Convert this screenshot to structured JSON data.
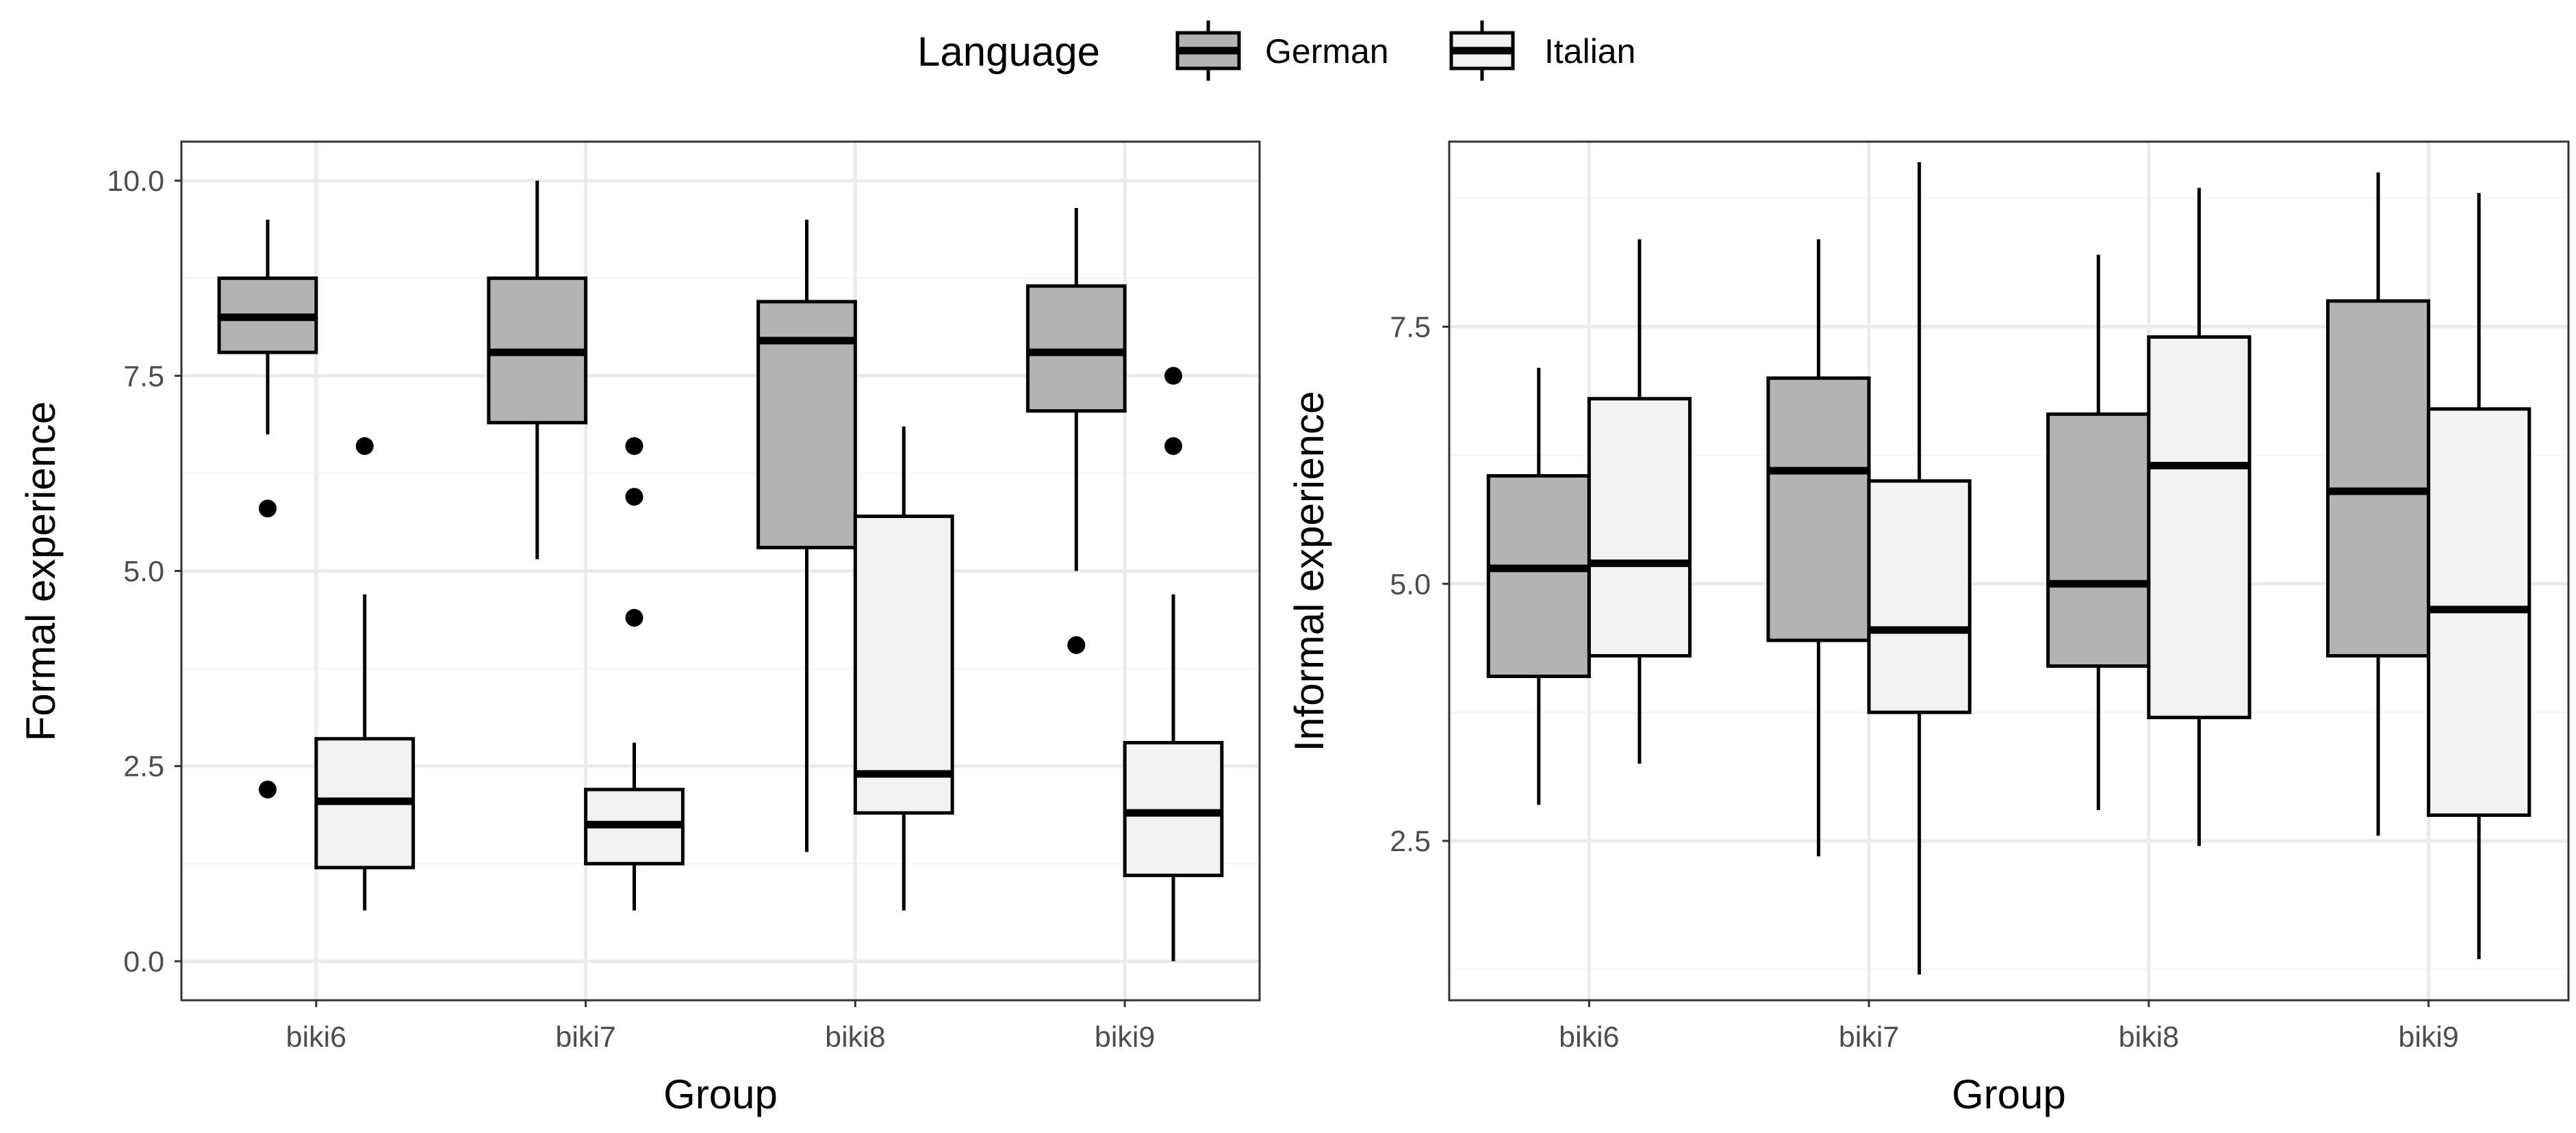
{
  "legend": {
    "title": "Language",
    "entries": [
      {
        "label": "German",
        "fill": "#b3b3b3"
      },
      {
        "label": "Italian",
        "fill": "#f2f2f2"
      }
    ]
  },
  "chart_data": [
    {
      "type": "boxplot",
      "xlabel": "Group",
      "ylabel": "Formal experience",
      "categories": [
        "biki6",
        "biki7",
        "biki8",
        "biki9"
      ],
      "ylim": [
        -0.5,
        10.5
      ],
      "yticks": [
        0.0,
        2.5,
        5.0,
        7.5,
        10.0
      ],
      "ytick_labels": [
        "0.0",
        "2.5",
        "5.0",
        "7.5",
        "10.0"
      ],
      "series": [
        {
          "name": "German",
          "boxes": [
            {
              "lower": 6.75,
              "q1": 7.8,
              "median": 8.25,
              "q3": 8.75,
              "upper": 9.5,
              "outliers": [
                5.8,
                2.2
              ]
            },
            {
              "lower": 5.15,
              "q1": 6.9,
              "median": 7.8,
              "q3": 8.75,
              "upper": 10.0,
              "outliers": []
            },
            {
              "lower": 1.4,
              "q1": 5.3,
              "median": 7.95,
              "q3": 8.45,
              "upper": 9.5,
              "outliers": []
            },
            {
              "lower": 5.0,
              "q1": 7.05,
              "median": 7.8,
              "q3": 8.65,
              "upper": 9.65,
              "outliers": [
                4.05
              ]
            }
          ]
        },
        {
          "name": "Italian",
          "boxes": [
            {
              "lower": 0.65,
              "q1": 1.2,
              "median": 2.05,
              "q3": 2.85,
              "upper": 4.7,
              "outliers": [
                6.6
              ]
            },
            {
              "lower": 0.65,
              "q1": 1.25,
              "median": 1.75,
              "q3": 2.2,
              "upper": 2.8,
              "outliers": [
                6.6,
                5.95,
                4.4
              ]
            },
            {
              "lower": 0.65,
              "q1": 1.9,
              "median": 2.4,
              "q3": 5.7,
              "upper": 6.85,
              "outliers": []
            },
            {
              "lower": 0.0,
              "q1": 1.1,
              "median": 1.9,
              "q3": 2.8,
              "upper": 4.7,
              "outliers": [
                7.5,
                6.6
              ]
            }
          ]
        }
      ]
    },
    {
      "type": "boxplot",
      "xlabel": "Group",
      "ylabel": "Informal experience",
      "categories": [
        "biki6",
        "biki7",
        "biki8",
        "biki9"
      ],
      "ylim": [
        0.95,
        9.3
      ],
      "yticks": [
        2.5,
        5.0,
        7.5
      ],
      "ytick_labels": [
        "2.5",
        "5.0",
        "7.5"
      ],
      "series": [
        {
          "name": "German",
          "boxes": [
            {
              "lower": 2.85,
              "q1": 4.1,
              "median": 5.15,
              "q3": 6.05,
              "upper": 7.1,
              "outliers": []
            },
            {
              "lower": 2.35,
              "q1": 4.45,
              "median": 6.1,
              "q3": 7.0,
              "upper": 8.35,
              "outliers": []
            },
            {
              "lower": 2.8,
              "q1": 4.2,
              "median": 5.0,
              "q3": 6.65,
              "upper": 8.2,
              "outliers": []
            },
            {
              "lower": 2.55,
              "q1": 4.3,
              "median": 5.9,
              "q3": 7.75,
              "upper": 9.0,
              "outliers": []
            }
          ]
        },
        {
          "name": "Italian",
          "boxes": [
            {
              "lower": 3.25,
              "q1": 4.3,
              "median": 5.2,
              "q3": 6.8,
              "upper": 8.35,
              "outliers": []
            },
            {
              "lower": 1.2,
              "q1": 3.75,
              "median": 4.55,
              "q3": 6.0,
              "upper": 9.1,
              "outliers": []
            },
            {
              "lower": 2.45,
              "q1": 3.7,
              "median": 6.15,
              "q3": 7.4,
              "upper": 8.85,
              "outliers": []
            },
            {
              "lower": 1.35,
              "q1": 2.75,
              "median": 4.75,
              "q3": 6.7,
              "upper": 8.8,
              "outliers": []
            }
          ]
        }
      ]
    }
  ]
}
